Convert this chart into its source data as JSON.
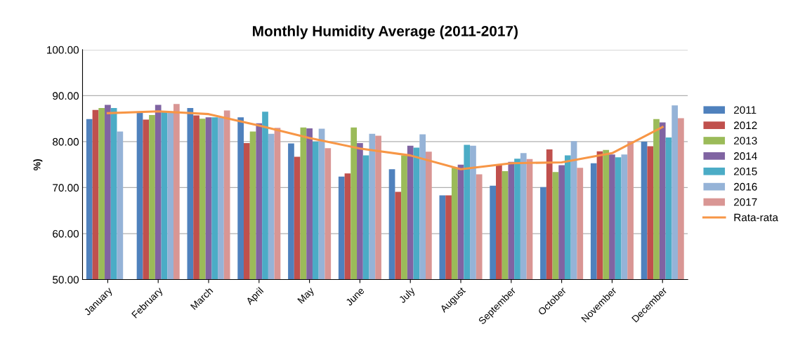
{
  "chart_data": {
    "type": "bar",
    "title": "Monthly Humidity Average (2011-2017)",
    "ylabel": "%)",
    "categories": [
      "January",
      "February",
      "March",
      "April",
      "May",
      "June",
      "July",
      "August",
      "September",
      "October",
      "November",
      "December"
    ],
    "ylim": [
      50,
      100
    ],
    "yticks": [
      {
        "value": 50,
        "label": "50.00"
      },
      {
        "value": 60,
        "label": "60.00"
      },
      {
        "value": 70,
        "label": "70.00"
      },
      {
        "value": 80,
        "label": "80.00"
      },
      {
        "value": 90,
        "label": "90.00"
      },
      {
        "value": 100,
        "label": "100.00"
      }
    ],
    "grid": "y",
    "legend": "right",
    "series": [
      {
        "name": "2011",
        "color": "#4f81bd",
        "values": [
          84.9,
          86.4,
          87.3,
          85.3,
          79.6,
          72.4,
          74.0,
          68.3,
          70.4,
          70.1,
          75.3,
          80.0
        ]
      },
      {
        "name": "2012",
        "color": "#c0504d",
        "values": [
          86.9,
          84.8,
          85.7,
          79.7,
          76.7,
          73.1,
          69.1,
          68.3,
          75.0,
          78.3,
          77.9,
          79.0
        ]
      },
      {
        "name": "2013",
        "color": "#9bbb59",
        "values": [
          87.3,
          85.8,
          85.0,
          82.2,
          83.1,
          83.1,
          77.0,
          74.3,
          73.6,
          73.4,
          78.2,
          84.9
        ]
      },
      {
        "name": "2014",
        "color": "#8064a2",
        "values": [
          88.0,
          88.0,
          85.3,
          84.0,
          82.9,
          79.7,
          79.1,
          75.0,
          75.6,
          74.9,
          77.2,
          84.2
        ]
      },
      {
        "name": "2015",
        "color": "#4bacc6",
        "values": [
          87.3,
          86.5,
          85.3,
          86.5,
          80.0,
          77.0,
          78.7,
          79.3,
          76.3,
          77.0,
          76.6,
          80.9
        ]
      },
      {
        "name": "2016",
        "color": "#95b3d7",
        "values": [
          82.2,
          86.5,
          85.3,
          81.7,
          82.8,
          81.7,
          81.6,
          79.1,
          77.5,
          80.1,
          77.2,
          87.9
        ]
      },
      {
        "name": "2017",
        "color": "#d99694",
        "values": [
          null,
          88.2,
          86.8,
          83.0,
          78.6,
          81.3,
          77.8,
          72.9,
          76.2,
          74.3,
          80.1,
          85.1
        ]
      },
      {
        "name": "Rata-rata",
        "type": "line",
        "color": "#f79646",
        "values": [
          86.2,
          86.6,
          86.0,
          83.5,
          80.8,
          78.5,
          77.0,
          74.0,
          75.3,
          75.5,
          77.5,
          83.2
        ]
      }
    ]
  }
}
